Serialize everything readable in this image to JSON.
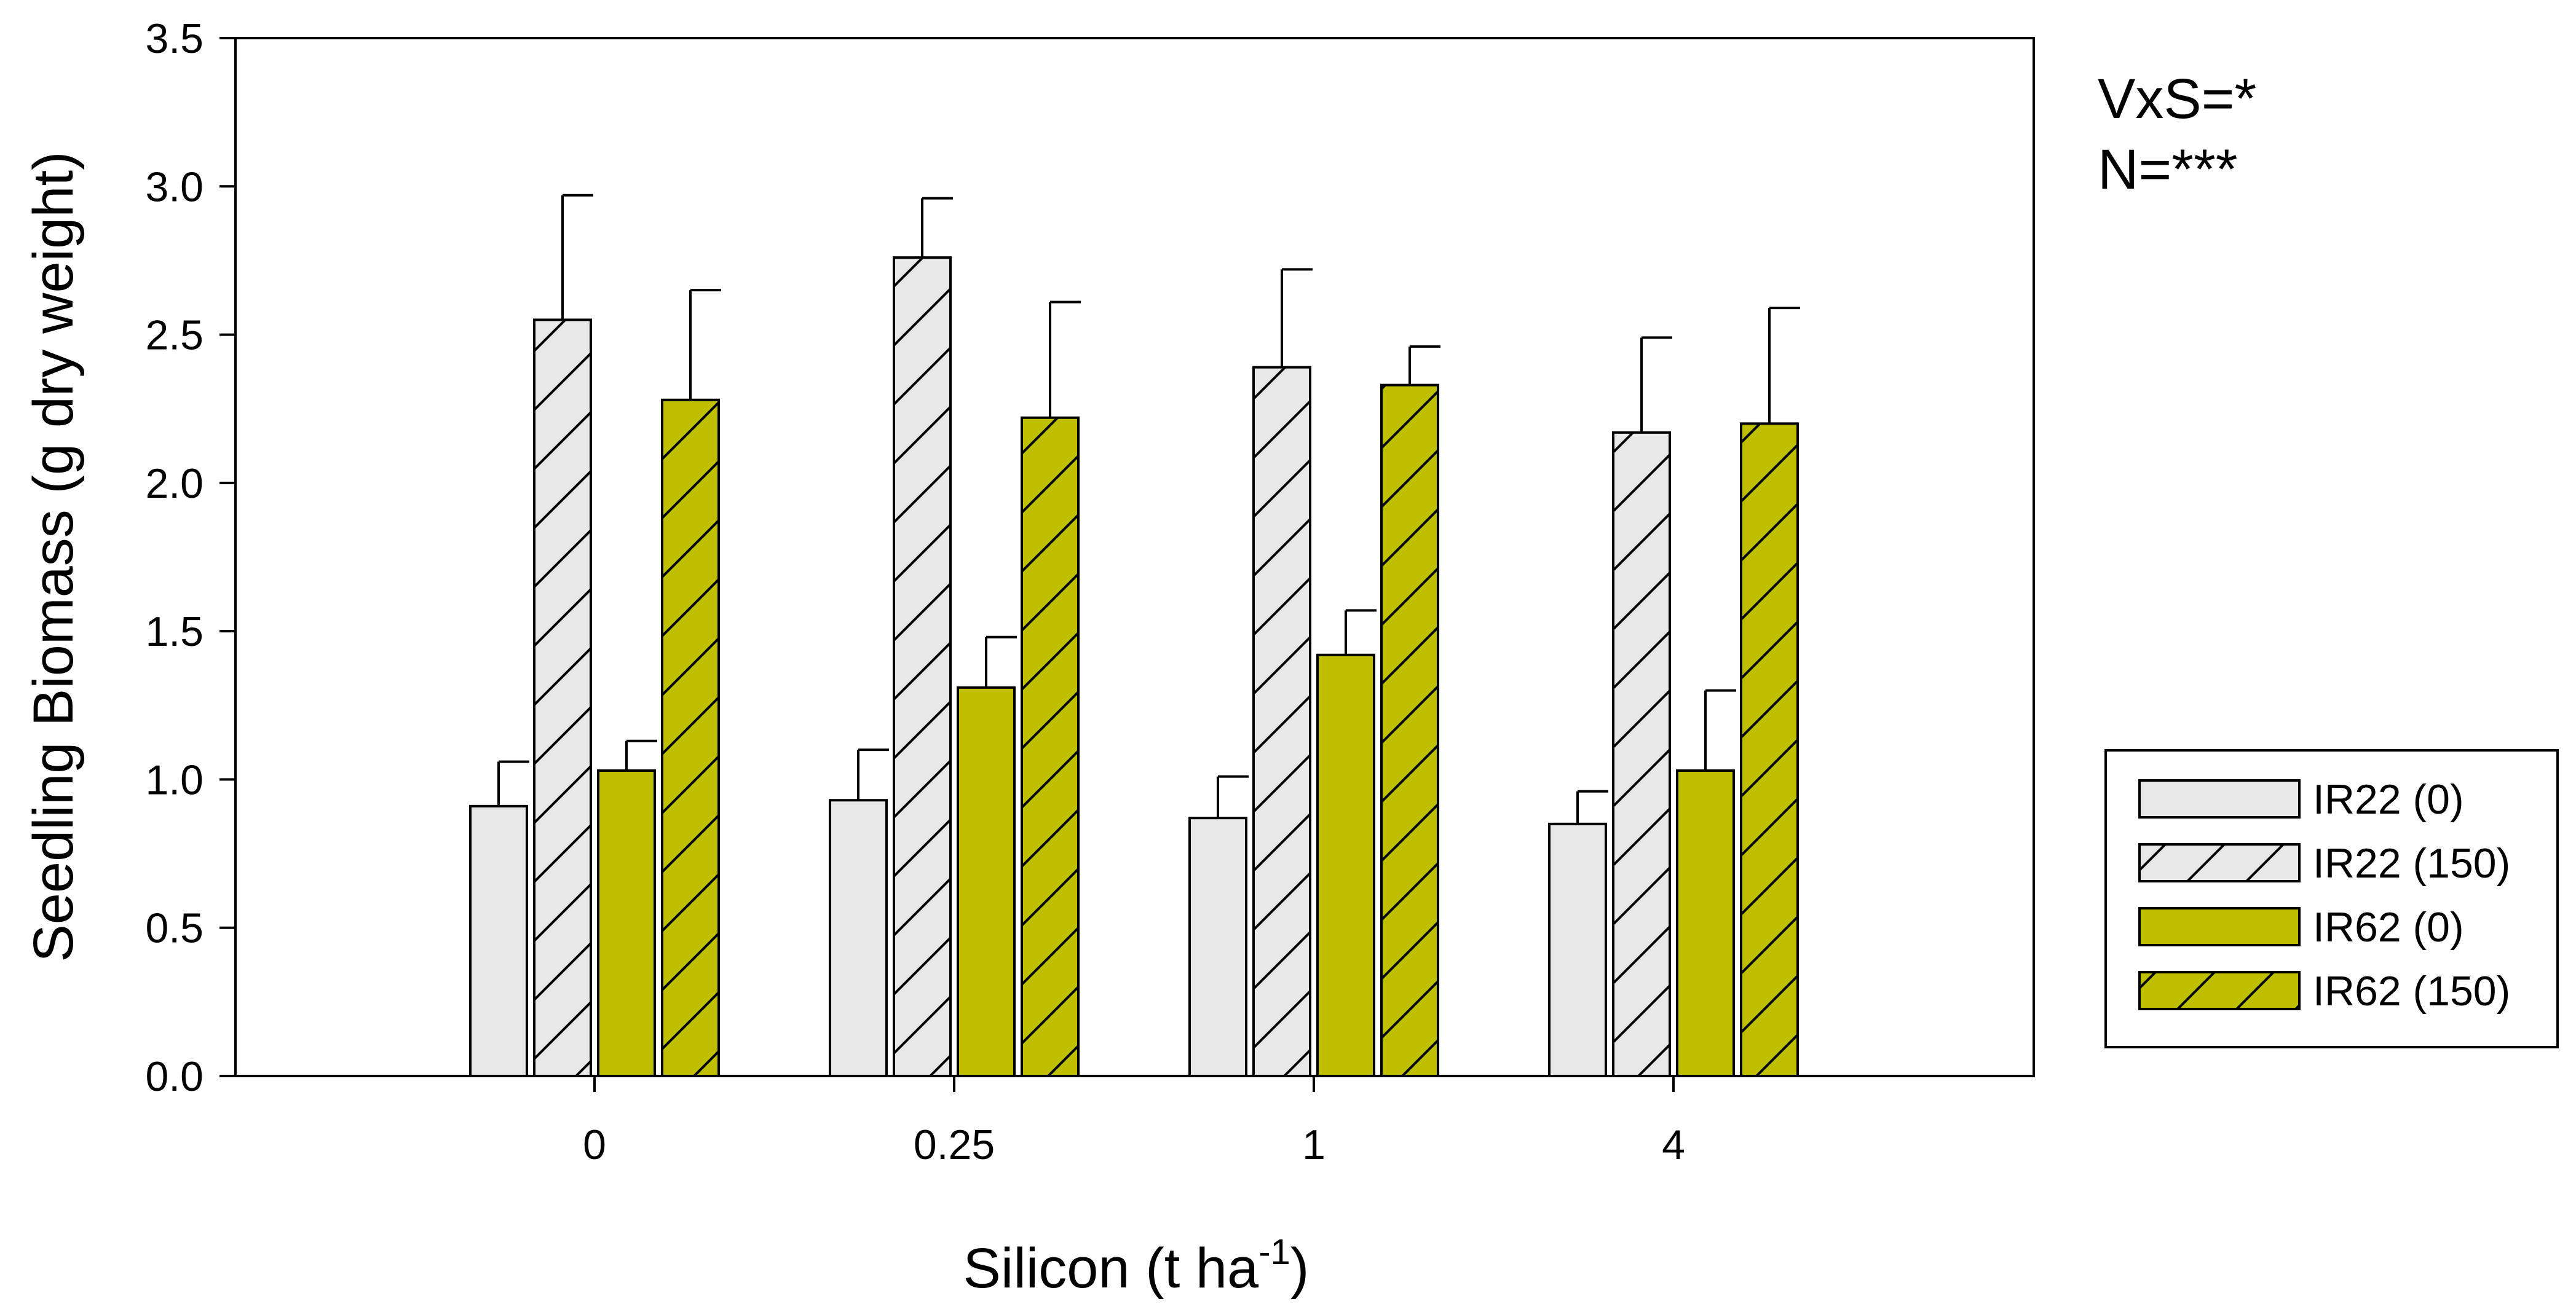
{
  "chart_data": {
    "type": "bar",
    "xlabel": "Silicon (t ha",
    "xlabel_superscript": "-1",
    "xlabel_suffix": ")",
    "ylabel": "Seedling Biomass (g dry weight)",
    "ylim": [
      0,
      3.5
    ],
    "yticks": [
      "0.0",
      "0.5",
      "1.0",
      "1.5",
      "2.0",
      "2.5",
      "3.0",
      "3.5"
    ],
    "categories": [
      "0",
      "0.25",
      "1",
      "4"
    ],
    "series": [
      {
        "name": "IR22 (0)",
        "pattern": "solid",
        "color": "#e8e8e8",
        "values": [
          0.91,
          0.93,
          0.87,
          0.85
        ],
        "errors": [
          0.15,
          0.17,
          0.14,
          0.11
        ]
      },
      {
        "name": "IR22 (150)",
        "pattern": "hatched",
        "color": "#e8e8e8",
        "values": [
          2.55,
          2.76,
          2.39,
          2.17
        ],
        "errors": [
          0.42,
          0.2,
          0.33,
          0.32
        ]
      },
      {
        "name": "IR62 (0)",
        "pattern": "solid",
        "color": "#bfbf00",
        "values": [
          1.03,
          1.31,
          1.42,
          1.03
        ],
        "errors": [
          0.1,
          0.17,
          0.15,
          0.27
        ]
      },
      {
        "name": "IR62 (150)",
        "pattern": "hatched",
        "color": "#bfbf00",
        "values": [
          2.28,
          2.22,
          2.33,
          2.2
        ],
        "errors": [
          0.37,
          0.39,
          0.13,
          0.39
        ]
      }
    ],
    "annotations": [
      "VxS=*",
      "N=***"
    ],
    "legend_position": "right"
  }
}
